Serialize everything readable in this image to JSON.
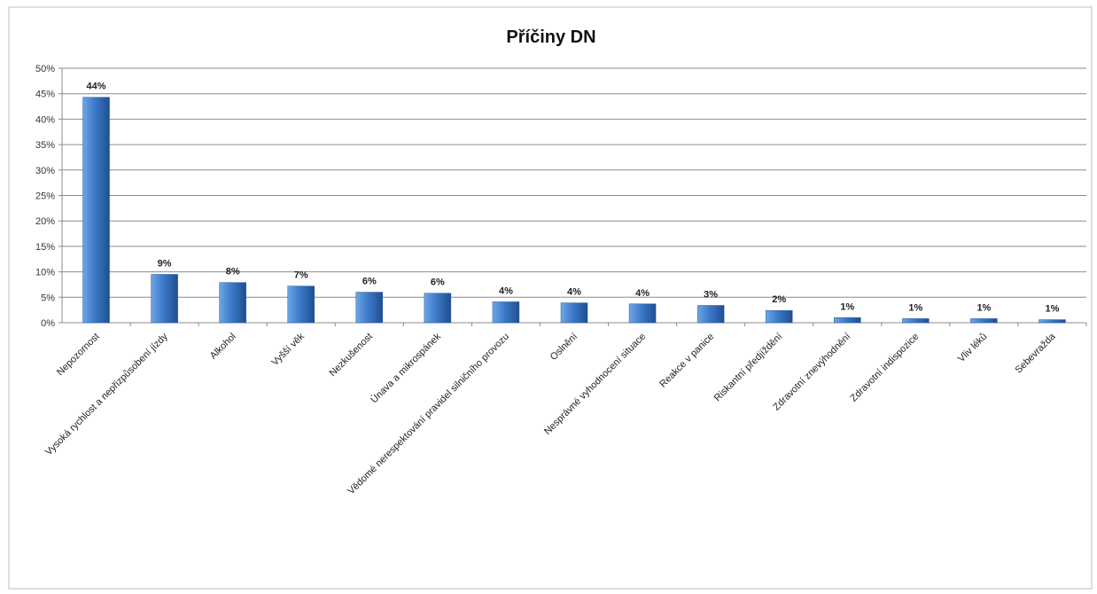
{
  "colors": {
    "bar_light": "#6ea6e6",
    "bar_mid": "#3c79c9",
    "bar_dark": "#1f4f8f",
    "grid": "#8c8c8c",
    "frame": "#bdbdbd"
  },
  "chart_data": {
    "type": "bar",
    "title": "Příčiny DN",
    "xlabel": "",
    "ylabel": "",
    "ylim": [
      0,
      50
    ],
    "yticks": [
      "0%",
      "5%",
      "10%",
      "15%",
      "20%",
      "25%",
      "30%",
      "35%",
      "40%",
      "45%",
      "50%"
    ],
    "grid": true,
    "legend": "none",
    "categories": [
      "Nepozornost",
      "Vysoká rychlost a nepřizpůsobení jízdy",
      "Alkohol",
      "Vyšší věk",
      "Nezkušenost",
      "Únava a mikrospánek",
      "Vědomé nerespektování pravidel silničního provozu",
      "Oslnění",
      "Nesprávné vyhodnocení situace",
      "Reakce v panice",
      "Riskantní předjíždění",
      "Zdravotní znevýhodnění",
      "Zdravotní indispozice",
      "Vliv léků",
      "Sebevražda"
    ],
    "values": [
      44.3,
      9.5,
      7.9,
      7.2,
      6.0,
      5.8,
      4.1,
      3.9,
      3.7,
      3.4,
      2.4,
      1.0,
      0.8,
      0.8,
      0.6
    ],
    "data_labels": [
      "44%",
      "9%",
      "8%",
      "7%",
      "6%",
      "6%",
      "4%",
      "4%",
      "4%",
      "3%",
      "2%",
      "1%",
      "1%",
      "1%",
      "1%"
    ]
  }
}
